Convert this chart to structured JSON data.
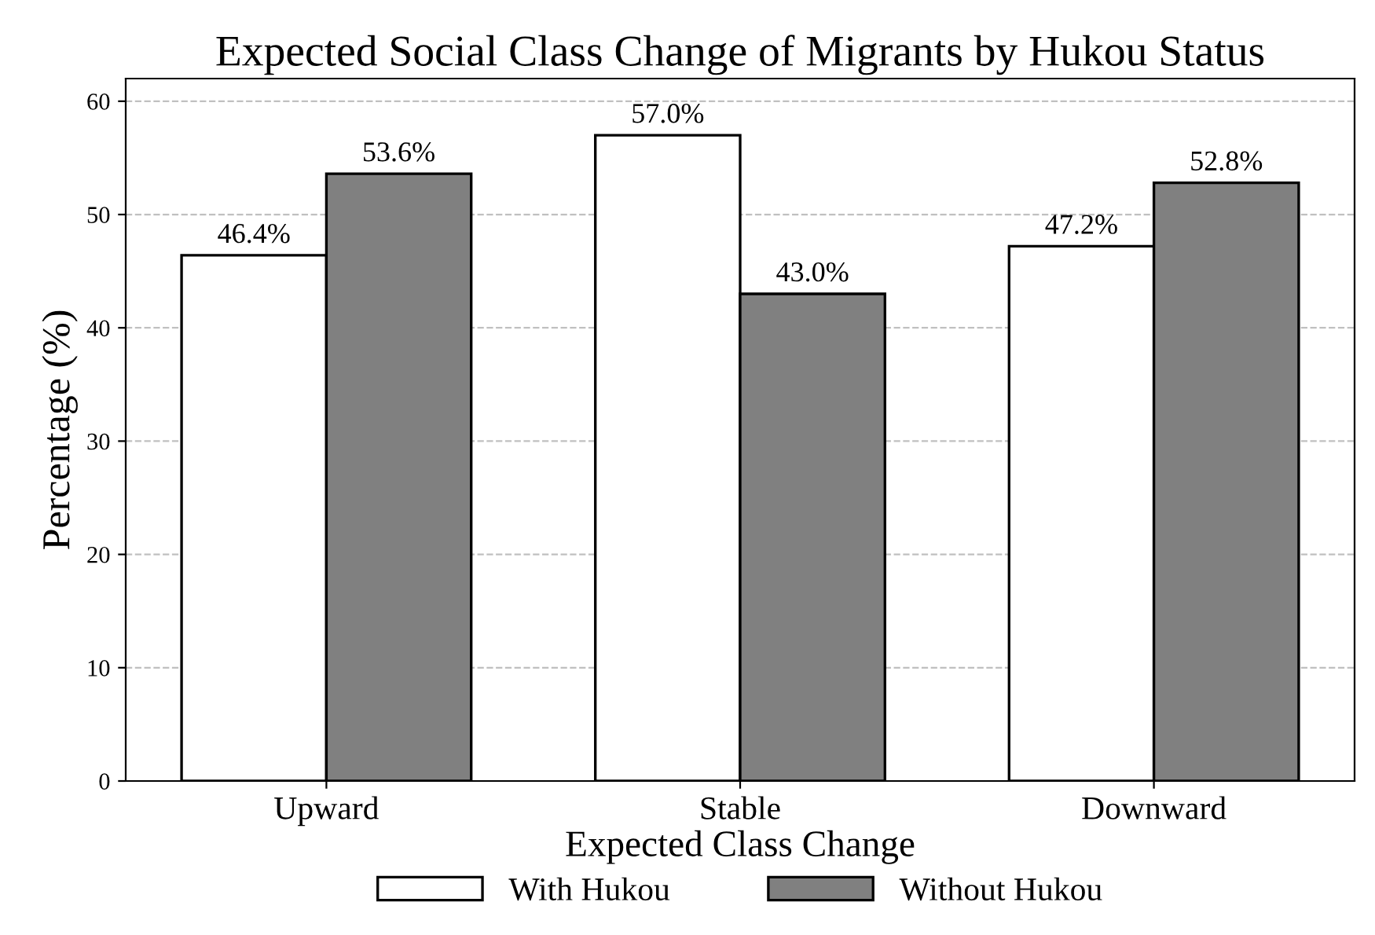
{
  "chart_data": {
    "type": "bar",
    "title": "Expected Social Class Change of Migrants by Hukou Status",
    "xlabel": "Expected Class Change",
    "ylabel": "Percentage (%)",
    "categories": [
      "Upward",
      "Stable",
      "Downward"
    ],
    "series": [
      {
        "name": "With Hukou",
        "color": "#ffffff",
        "values": [
          46.4,
          57.0,
          47.2
        ],
        "value_labels": [
          "46.4%",
          "57.0%",
          "47.2%"
        ]
      },
      {
        "name": "Without Hukou",
        "color": "#808080",
        "values": [
          53.6,
          43.0,
          52.8
        ],
        "value_labels": [
          "53.6%",
          "43.0%",
          "52.8%"
        ]
      }
    ],
    "ylim": [
      0,
      62
    ],
    "yticks": [
      0,
      10,
      20,
      30,
      40,
      50,
      60
    ],
    "grid": "y",
    "legend": "bottom"
  }
}
